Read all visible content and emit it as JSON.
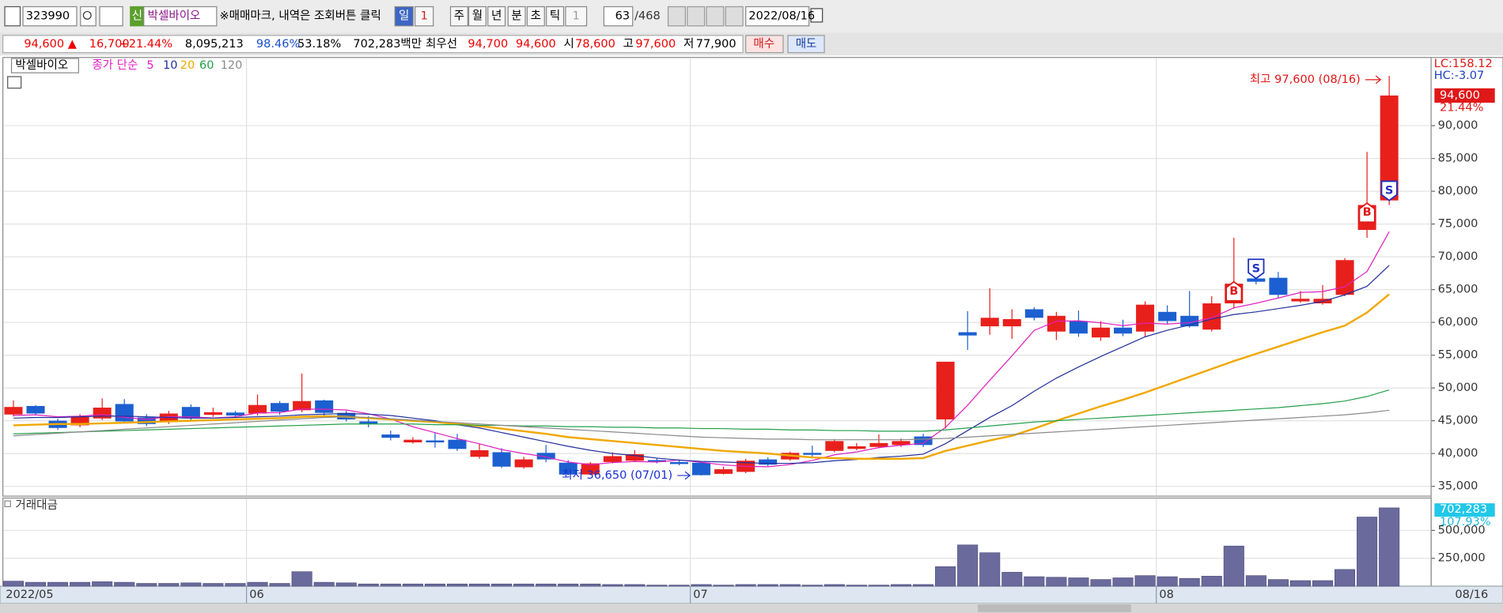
{
  "toolbar": {
    "code": "323990",
    "badge": "신",
    "name": "박셀바이오",
    "notice": "※매매마크, 내역은 조회버튼 클릭",
    "periods": [
      "일",
      "1",
      "주",
      "월",
      "년",
      "분",
      "초",
      "틱",
      "1"
    ],
    "count": "63",
    "total": "/468",
    "date": "2022/08/16"
  },
  "quote": {
    "price": "94,600 ▲",
    "change": "16,700",
    "rate": "+21.44%",
    "volume": "8,095,213",
    "ratio": "98.46%",
    "turnover": "53.18%",
    "amount": "702,283백만",
    "best_label": "최우선",
    "ask": "94,700",
    "bid": "94,600",
    "open_label": "시",
    "open": "78,600",
    "high_label": "고",
    "high": "97,600",
    "low_label": "저",
    "low": "77,900",
    "buy": "매수",
    "sell": "매도"
  },
  "chart_data": [
    {
      "type": "candlestick",
      "title": "박셀바이오",
      "legend_title": "종가 단순",
      "categories": [
        "2022/05",
        null,
        null,
        null,
        null,
        null,
        null,
        null,
        null,
        null,
        null,
        "06",
        null,
        null,
        null,
        null,
        null,
        null,
        null,
        null,
        null,
        null,
        null,
        null,
        null,
        null,
        null,
        null,
        null,
        null,
        null,
        "07",
        null,
        null,
        null,
        null,
        null,
        null,
        null,
        null,
        null,
        null,
        null,
        null,
        null,
        null,
        null,
        null,
        null,
        null,
        null,
        null,
        "08",
        null,
        null,
        null,
        null,
        null,
        null,
        null,
        null,
        null,
        "08/16"
      ],
      "open": [
        45950,
        47250,
        45000,
        44300,
        45350,
        47550,
        45500,
        44800,
        47100,
        45900,
        46250,
        46100,
        47700,
        46600,
        48100,
        46200,
        44900,
        42900,
        41700,
        42000,
        42100,
        39500,
        40200,
        37900,
        40100,
        38600,
        36800,
        38700,
        38900,
        39000,
        38700,
        38600,
        36900,
        37200,
        39100,
        39100,
        40100,
        40400,
        40700,
        41000,
        41300,
        42600,
        45200,
        58500,
        59400,
        59400,
        62000,
        58600,
        60200,
        57700,
        59200,
        58600,
        61600,
        61000,
        58900,
        62900,
        66700,
        66800,
        63200,
        62900,
        64200,
        74100,
        78600
      ],
      "high": [
        48100,
        47400,
        45300,
        46000,
        48400,
        48300,
        46000,
        46500,
        47500,
        47000,
        46500,
        49000,
        48000,
        52200,
        48200,
        46500,
        45700,
        43500,
        42500,
        43200,
        43000,
        41500,
        40800,
        39500,
        41300,
        39000,
        38700,
        40200,
        40500,
        39300,
        39000,
        38800,
        38000,
        39200,
        39400,
        40300,
        41200,
        42200,
        41600,
        42900,
        42300,
        43000,
        54000,
        61700,
        65200,
        62000,
        62300,
        61600,
        61800,
        60200,
        60400,
        63200,
        62600,
        64800,
        64000,
        72900,
        67500,
        67700,
        64800,
        65700,
        69800,
        86000,
        97600
      ],
      "low": [
        45650,
        45800,
        43600,
        44000,
        45100,
        44600,
        44200,
        44500,
        45000,
        45600,
        45600,
        45800,
        45900,
        46300,
        45800,
        44900,
        44000,
        42000,
        41500,
        40900,
        40400,
        39200,
        37800,
        37700,
        38700,
        36700,
        36700,
        38500,
        38700,
        38500,
        38200,
        36650,
        36800,
        37000,
        38100,
        38900,
        39500,
        40200,
        40500,
        40800,
        41000,
        41000,
        43800,
        55800,
        58100,
        57500,
        60300,
        57300,
        57800,
        57200,
        57900,
        57800,
        59700,
        59200,
        58600,
        62100,
        65800,
        63800,
        63000,
        62700,
        64000,
        72900,
        77900
      ],
      "close": [
        47100,
        46100,
        43900,
        45650,
        47000,
        44900,
        44500,
        46100,
        45350,
        46300,
        45800,
        47400,
        46400,
        48000,
        46200,
        45200,
        44500,
        42400,
        42100,
        41700,
        40700,
        40500,
        38000,
        39100,
        39100,
        36800,
        38500,
        39600,
        39900,
        38700,
        38400,
        36700,
        37600,
        38900,
        38300,
        40100,
        39800,
        41900,
        41100,
        41600,
        41900,
        41300,
        54000,
        58000,
        60700,
        60500,
        60700,
        61000,
        58300,
        59200,
        58300,
        62700,
        60200,
        59400,
        62900,
        65900,
        66200,
        64200,
        63600,
        63600,
        69500,
        77900,
        94600
      ],
      "up_color": "#e8201c",
      "down_color": "#1c5fd0",
      "series": [
        {
          "name": "5",
          "color": "#e020c0",
          "values": [
            45800,
            45900,
            45600,
            45700,
            45950,
            45510,
            45190,
            45630,
            45570,
            45430,
            45610,
            46190,
            46250,
            46780,
            46760,
            46640,
            46060,
            45260,
            44080,
            43180,
            42280,
            41480,
            40600,
            40000,
            39480,
            38700,
            38300,
            38620,
            38780,
            38700,
            39020,
            38660,
            38260,
            38060,
            37980,
            38320,
            38940,
            39800,
            40240,
            40900,
            41260,
            41560,
            43980,
            47360,
            51180,
            54900,
            58780,
            60180,
            60240,
            59940,
            59500,
            59900,
            59740,
            59960,
            60700,
            62220,
            62920,
            63720,
            64560,
            64700,
            65420,
            67760,
            73840
          ]
        },
        {
          "name": "10",
          "color": "#23309c",
          "values": [
            45400,
            45500,
            45500,
            45600,
            45700,
            45700,
            45600,
            45500,
            45400,
            45400,
            45500,
            45600,
            45700,
            45900,
            46000,
            46100,
            46000,
            45800,
            45400,
            45000,
            44400,
            43900,
            43200,
            42500,
            41800,
            41100,
            40500,
            40000,
            39700,
            39300,
            39000,
            38800,
            38700,
            38600,
            38500,
            38500,
            38600,
            38900,
            39100,
            39400,
            39600,
            39900,
            41500,
            43500,
            45500,
            47300,
            49500,
            51500,
            53200,
            54800,
            56300,
            57800,
            58800,
            59600,
            60500,
            61200,
            61600,
            62100,
            62600,
            63200,
            64200,
            65500,
            68700
          ]
        },
        {
          "name": "20",
          "color": "#f0a800",
          "values": [
            44300,
            44400,
            44500,
            44500,
            44600,
            44700,
            44800,
            44900,
            45000,
            45100,
            45200,
            45300,
            45400,
            45600,
            45700,
            45600,
            45400,
            45200,
            45000,
            44800,
            44500,
            44200,
            43800,
            43400,
            43000,
            42500,
            42200,
            41900,
            41600,
            41300,
            41000,
            40700,
            40400,
            40200,
            40000,
            39700,
            39400,
            39300,
            39200,
            39200,
            39200,
            39300,
            40400,
            41200,
            42000,
            42700,
            43800,
            45000,
            46100,
            47200,
            48200,
            49300,
            50500,
            51700,
            52900,
            54100,
            55200,
            56300,
            57400,
            58500,
            59500,
            61500,
            64300
          ]
        },
        {
          "name": "60",
          "color": "#22a048",
          "values": [
            43000,
            43100,
            43200,
            43300,
            43400,
            43500,
            43600,
            43700,
            43800,
            43900,
            44000,
            44100,
            44200,
            44300,
            44400,
            44500,
            44500,
            44500,
            44500,
            44400,
            44400,
            44300,
            44300,
            44200,
            44200,
            44100,
            44100,
            44000,
            44000,
            43900,
            43900,
            43800,
            43800,
            43700,
            43700,
            43600,
            43600,
            43500,
            43500,
            43400,
            43400,
            43400,
            43600,
            43900,
            44200,
            44500,
            44800,
            45000,
            45200,
            45400,
            45600,
            45800,
            46000,
            46200,
            46400,
            46600,
            46800,
            47000,
            47300,
            47600,
            48000,
            48700,
            49700
          ]
        },
        {
          "name": "120",
          "color": "#8a8a8a",
          "values": [
            42700,
            42900,
            43100,
            43300,
            43500,
            43700,
            43900,
            44100,
            44300,
            44500,
            44700,
            44900,
            45100,
            45300,
            45500,
            45600,
            45500,
            45300,
            45100,
            44900,
            44700,
            44500,
            44300,
            44100,
            43900,
            43700,
            43500,
            43300,
            43100,
            42900,
            42700,
            42500,
            42400,
            42300,
            42200,
            42200,
            42100,
            42100,
            42100,
            42100,
            42100,
            42200,
            42300,
            42500,
            42700,
            42900,
            43100,
            43300,
            43500,
            43700,
            43900,
            44100,
            44300,
            44500,
            44700,
            44900,
            45100,
            45300,
            45500,
            45700,
            45900,
            46200,
            46600
          ]
        }
      ],
      "signals": [
        null,
        null,
        null,
        null,
        null,
        null,
        null,
        null,
        null,
        null,
        null,
        null,
        null,
        null,
        null,
        null,
        null,
        null,
        null,
        null,
        null,
        null,
        null,
        null,
        null,
        null,
        null,
        null,
        null,
        null,
        null,
        null,
        null,
        null,
        null,
        null,
        null,
        null,
        null,
        null,
        null,
        null,
        null,
        null,
        null,
        null,
        null,
        null,
        null,
        null,
        null,
        null,
        null,
        null,
        null,
        "B",
        "S",
        null,
        null,
        null,
        null,
        "B",
        "S"
      ],
      "annotations": {
        "high": "최고 97,600 (08/16)",
        "low": "최저 36,650 (07/01)"
      },
      "lc": "LC:158.12",
      "hc": "HC:-3.07",
      "last_price": "94,600",
      "last_change": "21.44%",
      "ylim": [
        33500,
        100400
      ],
      "yticks": [
        {
          "value": 35000,
          "label": "35,000"
        },
        {
          "value": 40000,
          "label": "40,000"
        },
        {
          "value": 45000,
          "label": "45,000"
        },
        {
          "value": 50000,
          "label": "50,000"
        },
        {
          "value": 55000,
          "label": "55,000"
        },
        {
          "value": 60000,
          "label": "60,000"
        },
        {
          "value": 65000,
          "label": "65,000"
        },
        {
          "value": 70000,
          "label": "70,000"
        },
        {
          "value": 75000,
          "label": "75,000"
        },
        {
          "value": 80000,
          "label": "80,000"
        },
        {
          "value": 85000,
          "label": "85,000"
        },
        {
          "value": 90000,
          "label": "90,000"
        }
      ],
      "grid": true
    },
    {
      "type": "bar",
      "title": "거래대금",
      "color": "#6a6a9c",
      "values": [
        45000,
        35000,
        35000,
        35000,
        40000,
        35000,
        25000,
        25000,
        30000,
        25000,
        25000,
        35000,
        25000,
        130000,
        35000,
        30000,
        20000,
        20000,
        20000,
        20000,
        20000,
        20000,
        20000,
        20000,
        20000,
        20000,
        20000,
        15000,
        15000,
        10000,
        10000,
        15000,
        10000,
        15000,
        15000,
        15000,
        10000,
        15000,
        10000,
        10000,
        15000,
        15000,
        175000,
        370000,
        300000,
        125000,
        85000,
        80000,
        75000,
        60000,
        75000,
        95000,
        85000,
        70000,
        90000,
        360000,
        95000,
        60000,
        50000,
        50000,
        150000,
        620000,
        702283
      ],
      "last_value": "702,283",
      "last_change": "107.93%",
      "ylim": [
        0,
        790000
      ],
      "yticks": [
        {
          "value": 250000,
          "label": "250,000"
        },
        {
          "value": 500000,
          "label": "500,000"
        }
      ],
      "grid": true
    }
  ]
}
